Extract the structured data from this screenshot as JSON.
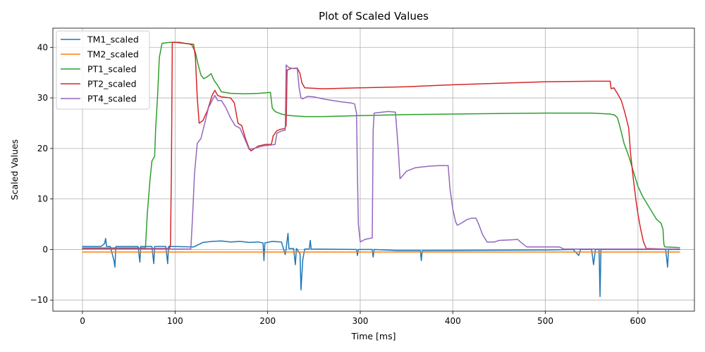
{
  "chart_data": {
    "type": "line",
    "title": "Plot of Scaled Values",
    "xlabel": "Time [ms]",
    "ylabel": "Scaled Values",
    "xlim": [
      -32,
      661
    ],
    "ylim": [
      -12.2,
      43.8
    ],
    "xticks": [
      0,
      100,
      200,
      300,
      400,
      500,
      600
    ],
    "yticks": [
      -10,
      0,
      10,
      20,
      30,
      40
    ],
    "grid": true,
    "legend_position": "top-left",
    "series": [
      {
        "name": "TM1_scaled",
        "color": "#1f77b4",
        "points": [
          [
            0,
            0.6
          ],
          [
            20,
            0.6
          ],
          [
            24,
            1.2
          ],
          [
            25,
            2.2
          ],
          [
            26,
            0.6
          ],
          [
            30,
            0.6
          ],
          [
            34,
            -2.2
          ],
          [
            35,
            -3.5
          ],
          [
            36,
            0.6
          ],
          [
            60,
            0.6
          ],
          [
            62,
            -2.5
          ],
          [
            63,
            0.6
          ],
          [
            75,
            0.6
          ],
          [
            77,
            -2.8
          ],
          [
            78,
            0.6
          ],
          [
            90,
            0.6
          ],
          [
            92,
            -2.8
          ],
          [
            93,
            0.6
          ],
          [
            120,
            0.5
          ],
          [
            130,
            1.4
          ],
          [
            140,
            1.6
          ],
          [
            150,
            1.7
          ],
          [
            160,
            1.5
          ],
          [
            170,
            1.6
          ],
          [
            180,
            1.4
          ],
          [
            190,
            1.5
          ],
          [
            195,
            1.3
          ],
          [
            196,
            -2.2
          ],
          [
            197,
            1.3
          ],
          [
            205,
            1.6
          ],
          [
            215,
            1.5
          ],
          [
            217,
            0.2
          ],
          [
            219,
            -1.0
          ],
          [
            220,
            0.2
          ],
          [
            222,
            3.2
          ],
          [
            223,
            0.2
          ],
          [
            228,
            0.2
          ],
          [
            230,
            -3.0
          ],
          [
            231,
            0.2
          ],
          [
            235,
            -0.8
          ],
          [
            236,
            -8.0
          ],
          [
            237,
            -5.0
          ],
          [
            238,
            -2.0
          ],
          [
            240,
            0.1
          ],
          [
            245,
            0.1
          ],
          [
            246,
            1.8
          ],
          [
            247,
            0.1
          ],
          [
            296,
            0.0
          ],
          [
            297,
            -1.2
          ],
          [
            298,
            0.0
          ],
          [
            313,
            0.0
          ],
          [
            314,
            -1.5
          ],
          [
            315,
            0.0
          ],
          [
            340,
            -0.2
          ],
          [
            365,
            -0.2
          ],
          [
            366,
            -2.2
          ],
          [
            367,
            -0.2
          ],
          [
            500,
            -0.1
          ],
          [
            530,
            0.0
          ],
          [
            536,
            -1.2
          ],
          [
            538,
            0.0
          ],
          [
            550,
            0.0
          ],
          [
            552,
            -3.0
          ],
          [
            554,
            0.0
          ],
          [
            558,
            0.0
          ],
          [
            559,
            -9.3
          ],
          [
            560,
            0.0
          ],
          [
            630,
            0.0
          ],
          [
            632,
            -3.5
          ],
          [
            633,
            0.0
          ],
          [
            645,
            0.0
          ]
        ]
      },
      {
        "name": "TM2_scaled",
        "color": "#ff7f0e",
        "points": [
          [
            0,
            -0.5
          ],
          [
            645,
            -0.5
          ]
        ]
      },
      {
        "name": "PT1_scaled",
        "color": "#2ca02c",
        "points": [
          [
            0,
            0.3
          ],
          [
            68,
            0.3
          ],
          [
            70,
            7.0
          ],
          [
            73,
            14.0
          ],
          [
            75,
            17.5
          ],
          [
            78,
            18.5
          ],
          [
            79,
            24.0
          ],
          [
            81,
            30.0
          ],
          [
            83,
            38.0
          ],
          [
            86,
            40.8
          ],
          [
            95,
            41.0
          ],
          [
            105,
            41.0
          ],
          [
            110,
            40.8
          ],
          [
            115,
            40.7
          ],
          [
            118,
            40.5
          ],
          [
            122,
            39.0
          ],
          [
            125,
            36.5
          ],
          [
            128,
            34.5
          ],
          [
            131,
            33.8
          ],
          [
            135,
            34.2
          ],
          [
            139,
            34.8
          ],
          [
            142,
            33.5
          ],
          [
            146,
            32.5
          ],
          [
            150,
            31.2
          ],
          [
            160,
            30.9
          ],
          [
            175,
            30.8
          ],
          [
            190,
            30.9
          ],
          [
            203,
            31.1
          ],
          [
            205,
            28.0
          ],
          [
            208,
            27.3
          ],
          [
            212,
            27.0
          ],
          [
            215,
            26.8
          ],
          [
            220,
            26.6
          ],
          [
            225,
            26.5
          ],
          [
            240,
            26.3
          ],
          [
            260,
            26.3
          ],
          [
            300,
            26.5
          ],
          [
            350,
            26.7
          ],
          [
            400,
            26.8
          ],
          [
            450,
            26.9
          ],
          [
            500,
            27.0
          ],
          [
            550,
            27.0
          ],
          [
            570,
            26.8
          ],
          [
            575,
            26.6
          ],
          [
            578,
            26.0
          ],
          [
            581,
            24.0
          ],
          [
            585,
            21.0
          ],
          [
            590,
            18.5
          ],
          [
            595,
            15.5
          ],
          [
            600,
            12.5
          ],
          [
            605,
            10.5
          ],
          [
            610,
            9.0
          ],
          [
            615,
            7.5
          ],
          [
            620,
            6.0
          ],
          [
            625,
            5.2
          ],
          [
            627,
            4.0
          ],
          [
            628,
            1.0
          ],
          [
            629,
            0.5
          ],
          [
            645,
            0.4
          ]
        ]
      },
      {
        "name": "PT2_scaled",
        "color": "#d62728",
        "points": [
          [
            0,
            0.2
          ],
          [
            94,
            0.2
          ],
          [
            95,
            1.0
          ],
          [
            96,
            15.0
          ],
          [
            97,
            41.0
          ],
          [
            100,
            41.0
          ],
          [
            110,
            40.8
          ],
          [
            120,
            40.6
          ],
          [
            122,
            38.0
          ],
          [
            124,
            30.0
          ],
          [
            126,
            25.0
          ],
          [
            130,
            25.5
          ],
          [
            135,
            27.5
          ],
          [
            140,
            30.5
          ],
          [
            143,
            31.5
          ],
          [
            146,
            30.5
          ],
          [
            150,
            30.2
          ],
          [
            160,
            30.0
          ],
          [
            164,
            29.0
          ],
          [
            168,
            25.0
          ],
          [
            172,
            24.5
          ],
          [
            176,
            22.0
          ],
          [
            180,
            20.0
          ],
          [
            182,
            19.5
          ],
          [
            190,
            20.5
          ],
          [
            198,
            20.8
          ],
          [
            204,
            20.8
          ],
          [
            206,
            22.5
          ],
          [
            210,
            23.5
          ],
          [
            214,
            23.8
          ],
          [
            218,
            23.9
          ],
          [
            220,
            24.5
          ],
          [
            221,
            35.5
          ],
          [
            225,
            35.8
          ],
          [
            232,
            35.9
          ],
          [
            235,
            34.8
          ],
          [
            237,
            33.0
          ],
          [
            240,
            32.0
          ],
          [
            260,
            31.8
          ],
          [
            300,
            32.0
          ],
          [
            350,
            32.2
          ],
          [
            400,
            32.6
          ],
          [
            450,
            32.9
          ],
          [
            500,
            33.2
          ],
          [
            550,
            33.3
          ],
          [
            570,
            33.3
          ],
          [
            571,
            31.8
          ],
          [
            574,
            32.0
          ],
          [
            578,
            30.8
          ],
          [
            582,
            29.5
          ],
          [
            586,
            27.0
          ],
          [
            590,
            24.0
          ],
          [
            592,
            19.0
          ],
          [
            595,
            14.0
          ],
          [
            598,
            9.5
          ],
          [
            600,
            7.0
          ],
          [
            603,
            4.0
          ],
          [
            606,
            1.5
          ],
          [
            609,
            0.2
          ],
          [
            645,
            0.0
          ]
        ]
      },
      {
        "name": "PT4_scaled",
        "color": "#9467bd",
        "points": [
          [
            0,
            0.1
          ],
          [
            117,
            0.1
          ],
          [
            119,
            7.0
          ],
          [
            121,
            15.0
          ],
          [
            124,
            21.0
          ],
          [
            128,
            22.0
          ],
          [
            132,
            25.0
          ],
          [
            136,
            28.0
          ],
          [
            140,
            29.5
          ],
          [
            143,
            30.5
          ],
          [
            146,
            29.5
          ],
          [
            150,
            29.5
          ],
          [
            155,
            28.0
          ],
          [
            160,
            26.0
          ],
          [
            165,
            24.5
          ],
          [
            170,
            24.0
          ],
          [
            175,
            22.0
          ],
          [
            180,
            19.8
          ],
          [
            185,
            20.0
          ],
          [
            195,
            20.5
          ],
          [
            205,
            20.7
          ],
          [
            208,
            20.8
          ],
          [
            210,
            23.0
          ],
          [
            213,
            23.3
          ],
          [
            216,
            23.5
          ],
          [
            219,
            23.6
          ],
          [
            220,
            36.5
          ],
          [
            223,
            36.0
          ],
          [
            227,
            35.8
          ],
          [
            232,
            35.8
          ],
          [
            234,
            32.0
          ],
          [
            236,
            30.0
          ],
          [
            238,
            29.8
          ],
          [
            243,
            30.3
          ],
          [
            250,
            30.2
          ],
          [
            260,
            29.8
          ],
          [
            270,
            29.5
          ],
          [
            280,
            29.2
          ],
          [
            290,
            29.0
          ],
          [
            294,
            28.8
          ],
          [
            296,
            27.0
          ],
          [
            297,
            15.0
          ],
          [
            298,
            5.0
          ],
          [
            300,
            1.5
          ],
          [
            305,
            2.0
          ],
          [
            313,
            2.3
          ],
          [
            314,
            23.5
          ],
          [
            315,
            27.0
          ],
          [
            320,
            27.1
          ],
          [
            330,
            27.3
          ],
          [
            338,
            27.2
          ],
          [
            341,
            20.0
          ],
          [
            343,
            14.0
          ],
          [
            350,
            15.5
          ],
          [
            360,
            16.2
          ],
          [
            375,
            16.5
          ],
          [
            385,
            16.6
          ],
          [
            395,
            16.6
          ],
          [
            397,
            12.0
          ],
          [
            400,
            8.0
          ],
          [
            403,
            5.5
          ],
          [
            405,
            4.8
          ],
          [
            410,
            5.3
          ],
          [
            415,
            5.9
          ],
          [
            420,
            6.2
          ],
          [
            425,
            6.2
          ],
          [
            428,
            5.0
          ],
          [
            432,
            3.0
          ],
          [
            437,
            1.5
          ],
          [
            445,
            1.5
          ],
          [
            450,
            1.8
          ],
          [
            462,
            1.9
          ],
          [
            470,
            2.0
          ],
          [
            475,
            1.2
          ],
          [
            480,
            0.5
          ],
          [
            490,
            0.5
          ],
          [
            500,
            0.5
          ],
          [
            510,
            0.5
          ],
          [
            515,
            0.5
          ],
          [
            520,
            0.1
          ],
          [
            645,
            0.1
          ]
        ]
      }
    ]
  }
}
